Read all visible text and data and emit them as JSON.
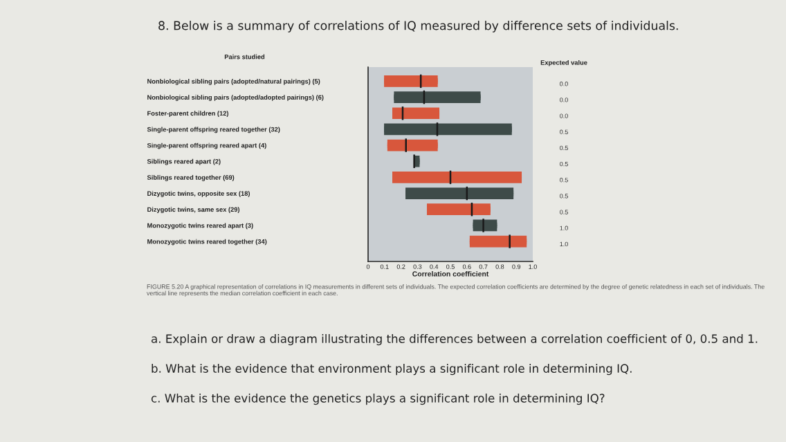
{
  "chart_data": {
    "type": "box",
    "orientation": "horizontal",
    "title": "8. Below is a summary of correlations of IQ measured by difference sets of individuals.",
    "ylabel": "Pairs studied",
    "xlabel": "Correlation coefficient",
    "y2label": "Expected value",
    "categories": [
      "Nonbiological sibling pairs (adopted/natural pairings) (5)",
      "Nonbiological sibling pairs (adopted/adopted pairings) (6)",
      "Foster-parent children (12)",
      "Single-parent offspring reared together (32)",
      "Single-parent offspring reared apart (4)",
      "Siblings reared apart (2)",
      "Siblings reared together (69)",
      "Dizygotic twins, opposite sex (18)",
      "Dizygotic twins, same sex (29)",
      "Monozygotic twins reared apart (3)",
      "Monozygotic twins reared together (34)"
    ],
    "y2_categories": [
      "0.0",
      "0.0",
      "0.0",
      "0.5",
      "0.5",
      "0.5",
      "0.5",
      "0.5",
      "0.5",
      "1.0",
      "1.0"
    ],
    "boxes": [
      {
        "low": 0.1,
        "q1": 0.1,
        "median": 0.32,
        "q3": 0.42,
        "high": 0.42
      },
      {
        "low": 0.16,
        "q1": 0.16,
        "median": 0.34,
        "q3": 0.68,
        "high": 0.68
      },
      {
        "low": 0.15,
        "q1": 0.15,
        "median": 0.21,
        "q3": 0.43,
        "high": 0.43
      },
      {
        "low": 0.1,
        "q1": 0.1,
        "median": 0.42,
        "q3": 0.87,
        "high": 0.87
      },
      {
        "low": 0.12,
        "q1": 0.12,
        "median": 0.23,
        "q3": 0.42,
        "high": 0.42
      },
      {
        "low": 0.28,
        "q1": 0.28,
        "median": 0.28,
        "q3": 0.31,
        "high": 0.31
      },
      {
        "low": 0.15,
        "q1": 0.15,
        "median": 0.5,
        "q3": 0.93,
        "high": 0.93
      },
      {
        "low": 0.23,
        "q1": 0.23,
        "median": 0.6,
        "q3": 0.88,
        "high": 0.88
      },
      {
        "low": 0.36,
        "q1": 0.36,
        "median": 0.63,
        "q3": 0.74,
        "high": 0.74
      },
      {
        "low": 0.64,
        "q1": 0.64,
        "median": 0.7,
        "q3": 0.78,
        "high": 0.78
      },
      {
        "low": 0.62,
        "q1": 0.62,
        "median": 0.86,
        "q3": 0.96,
        "high": 0.96
      }
    ],
    "colors": [
      "#d8573c",
      "#3e4b49",
      "#d8573c",
      "#3e4b49",
      "#d8573c",
      "#3e4b49",
      "#d8573c",
      "#3e4b49",
      "#d8573c",
      "#3e4b49",
      "#d8573c"
    ],
    "xlim": [
      0,
      1
    ],
    "xticks": [
      0,
      0.1,
      0.2,
      0.3,
      0.4,
      0.5,
      0.6,
      0.7,
      0.8,
      0.9,
      {
        "value": 1,
        "label": "1.0"
      }
    ],
    "annotations": [
      "FIGURE 5.20 A graphical representation of correlations in IQ measurements in different sets of individuals. The expected correlation coefficients are determined by the degree of genetic relatedness in each set of individuals. The vertical line represents the median correlation coefficient in each case.",
      "a. Explain or draw a diagram illustrating the differences between a correlation coefficient of 0, 0.5 and 1.",
      "b. What is the evidence that environment plays a significant role in determining IQ.",
      "c. What is the evidence the genetics plays a significant role in determining IQ?"
    ]
  }
}
